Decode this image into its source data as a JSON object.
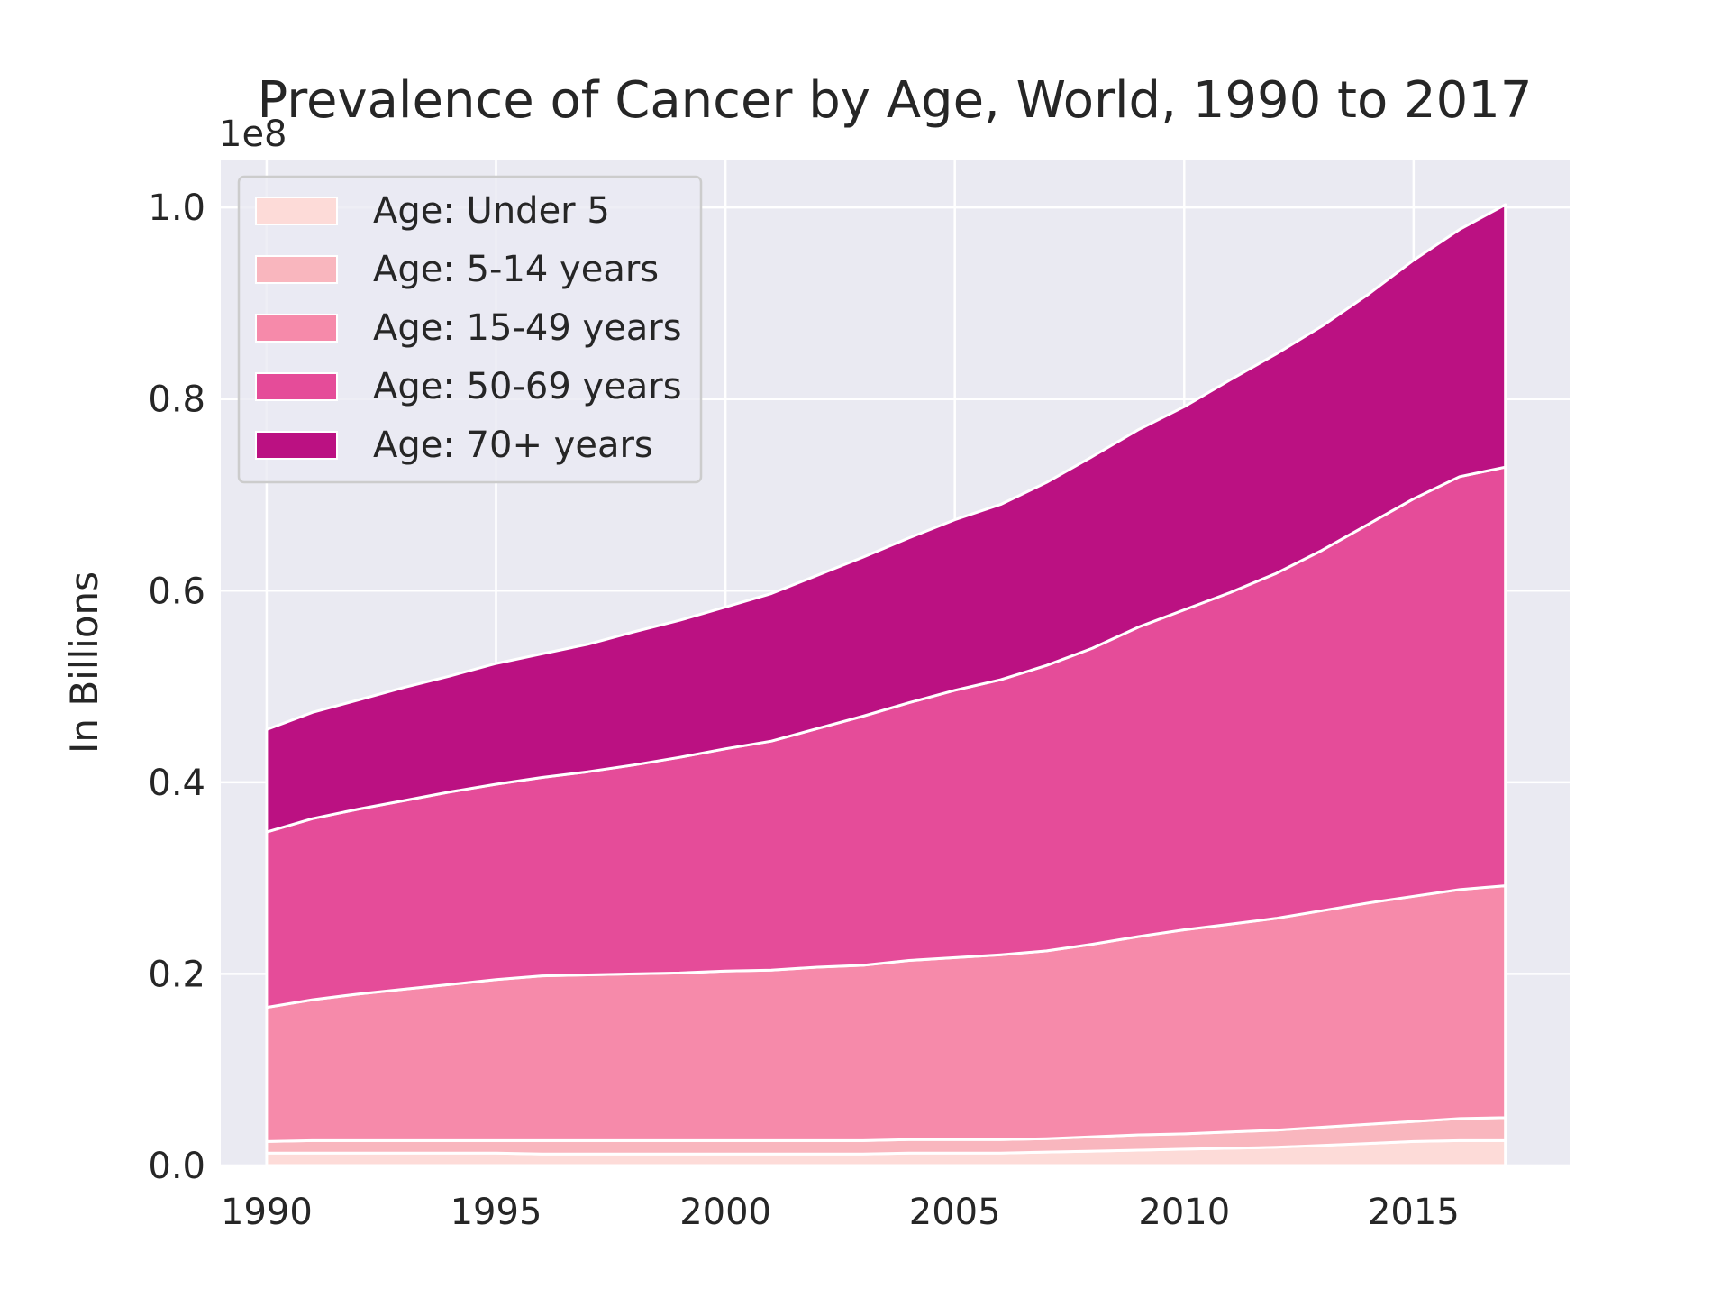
{
  "chart_data": {
    "type": "area",
    "stacked": true,
    "title": "Prevalence of Cancer by Age, World, 1990 to 2017",
    "xlabel": "",
    "ylabel": "In Billions",
    "y_offset_label": "1e8",
    "xlim": [
      1989,
      2018.4
    ],
    "ylim": [
      0,
      1.05
    ],
    "x_ticks": [
      1990,
      1995,
      2000,
      2005,
      2010,
      2015
    ],
    "y_ticks": [
      0.0,
      0.2,
      0.4,
      0.6,
      0.8,
      1.0
    ],
    "y_tick_labels": [
      "0.0",
      "0.2",
      "0.4",
      "0.6",
      "0.8",
      "1.0"
    ],
    "grid": true,
    "legend_position": "upper-left",
    "x": [
      1990,
      1991,
      1992,
      1993,
      1994,
      1995,
      1996,
      1997,
      1998,
      1999,
      2000,
      2001,
      2002,
      2003,
      2004,
      2005,
      2006,
      2007,
      2008,
      2009,
      2010,
      2011,
      2012,
      2013,
      2014,
      2015,
      2016,
      2017
    ],
    "series": [
      {
        "name": "Age: Under 5",
        "color": "#fddbd8",
        "values": [
          0.013,
          0.013,
          0.013,
          0.013,
          0.013,
          0.013,
          0.012,
          0.012,
          0.012,
          0.012,
          0.012,
          0.012,
          0.012,
          0.012,
          0.013,
          0.013,
          0.013,
          0.014,
          0.015,
          0.016,
          0.017,
          0.018,
          0.019,
          0.021,
          0.023,
          0.025,
          0.026,
          0.026
        ]
      },
      {
        "name": "Age: 5-14 years",
        "color": "#f9b6be",
        "values": [
          0.012,
          0.013,
          0.013,
          0.013,
          0.013,
          0.013,
          0.014,
          0.014,
          0.014,
          0.014,
          0.014,
          0.014,
          0.014,
          0.014,
          0.014,
          0.014,
          0.014,
          0.014,
          0.015,
          0.016,
          0.016,
          0.017,
          0.018,
          0.019,
          0.02,
          0.021,
          0.023,
          0.024
        ]
      },
      {
        "name": "Age: 15-49 years",
        "color": "#f68aaa",
        "values": [
          0.14,
          0.147,
          0.153,
          0.158,
          0.163,
          0.168,
          0.172,
          0.173,
          0.174,
          0.175,
          0.177,
          0.178,
          0.181,
          0.183,
          0.187,
          0.19,
          0.193,
          0.196,
          0.201,
          0.207,
          0.213,
          0.217,
          0.221,
          0.226,
          0.231,
          0.235,
          0.239,
          0.242
        ]
      },
      {
        "name": "Age: 50-69 years",
        "color": "#e54c99",
        "values": [
          0.183,
          0.189,
          0.193,
          0.197,
          0.201,
          0.204,
          0.207,
          0.212,
          0.218,
          0.225,
          0.232,
          0.239,
          0.249,
          0.26,
          0.269,
          0.279,
          0.287,
          0.298,
          0.309,
          0.323,
          0.334,
          0.346,
          0.36,
          0.376,
          0.395,
          0.415,
          0.431,
          0.437
        ]
      },
      {
        "name": "Age: 70+ years",
        "color": "#bb1182",
        "values": [
          0.107,
          0.111,
          0.114,
          0.118,
          0.121,
          0.126,
          0.129,
          0.133,
          0.139,
          0.143,
          0.148,
          0.154,
          0.16,
          0.166,
          0.172,
          0.178,
          0.183,
          0.191,
          0.2,
          0.206,
          0.212,
          0.222,
          0.229,
          0.234,
          0.24,
          0.249,
          0.258,
          0.274
        ]
      }
    ]
  }
}
